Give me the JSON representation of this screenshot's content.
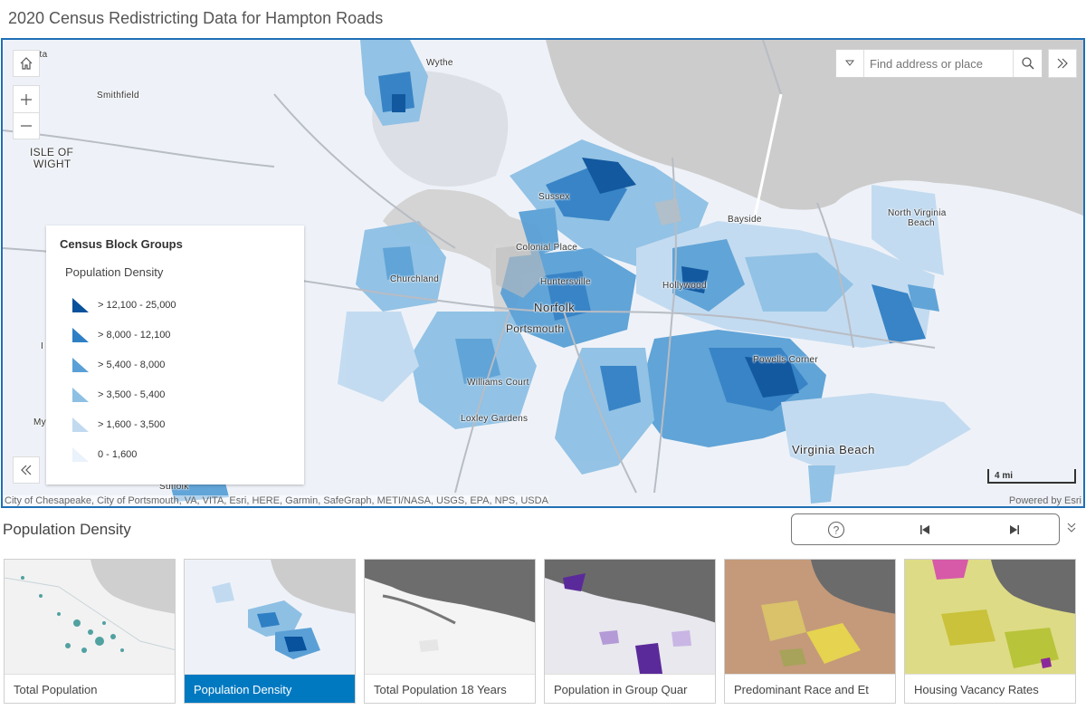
{
  "header": {
    "title": "2020 Census Redistricting Data for Hampton Roads"
  },
  "map": {
    "search_placeholder": "Find address or place",
    "attribution": "City of Chesapeake, City of Portsmouth, VA, VITA, Esri, HERE, Garmin, SafeGraph, METI/NASA, USGS, EPA, NPS, USDA",
    "powered_by": "Powered by Esri",
    "scale_label": "4 mi",
    "places": [
      "Wythe",
      "Smithfield",
      "ISLE OF",
      "WIGHT",
      "Sussex",
      "Bayside",
      "North Virginia",
      "Beach",
      "Colonial Place",
      "Churchland",
      "Huntersville",
      "Hollywood",
      "Norfolk",
      "Portsmouth",
      "Powells Corner",
      "Williams Court",
      "Loxley Gardens",
      "Virginia Beach",
      "Suffolk",
      "ita",
      "I",
      "My"
    ],
    "icons": {
      "home": "home-icon",
      "zoom_in": "plus-icon",
      "zoom_out": "minus-icon",
      "collapse": "double-chevron-left-icon",
      "expand": "double-chevron-right-icon",
      "search": "search-icon",
      "dropdown": "caret-down-icon"
    }
  },
  "legend": {
    "title": "Census Block Groups",
    "subtitle": "Population Density",
    "items": [
      {
        "label": "> 12,100 - 25,000",
        "color": "#08519c"
      },
      {
        "label": "> 8,000 - 12,100",
        "color": "#2f7fc4"
      },
      {
        "label": "> 5,400 - 8,000",
        "color": "#5aa0d6"
      },
      {
        "label": "> 3,500 - 5,400",
        "color": "#8ec0e4"
      },
      {
        "label": "> 1,600 - 3,500",
        "color": "#c1daf0"
      },
      {
        "label": "0 - 1,600",
        "color": "#eaf2fb"
      }
    ]
  },
  "section": {
    "title": "Population Density"
  },
  "player": {
    "icons": [
      "help-icon",
      "skip-previous-icon",
      "skip-next-icon",
      "chevron-down-icon"
    ]
  },
  "cards": [
    {
      "label": "Total Population",
      "active": false
    },
    {
      "label": "Population Density",
      "active": true
    },
    {
      "label": "Total Population 18 Years",
      "active": false
    },
    {
      "label": "Population in Group Quar",
      "active": false
    },
    {
      "label": "Predominant Race and Et",
      "active": false
    },
    {
      "label": "Housing Vacancy Rates",
      "active": false
    }
  ],
  "colors": {
    "accent": "#0079c1",
    "map_border": "#1f6fb6",
    "water": "#c8c8c8",
    "land": "#eef2f8"
  }
}
